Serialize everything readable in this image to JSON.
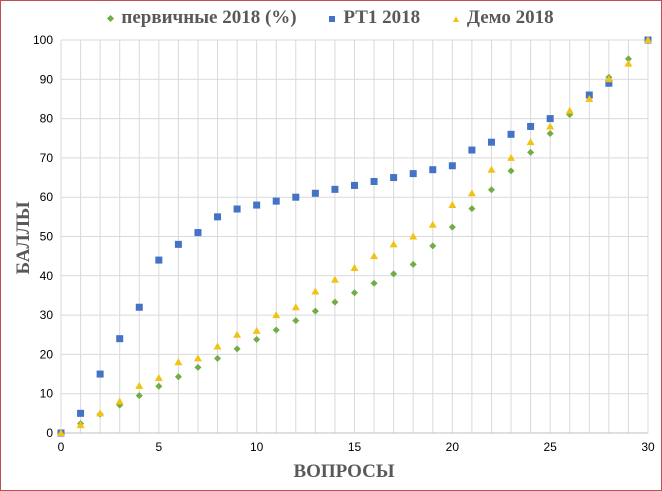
{
  "chart_data": {
    "type": "scatter",
    "xlabel": "ВОПРОСЫ",
    "ylabel": "БАЛЛЫ",
    "xlim": [
      0,
      30
    ],
    "ylim": [
      0,
      100
    ],
    "xticks": [
      0,
      5,
      10,
      15,
      20,
      25,
      30
    ],
    "yticks": [
      0,
      10,
      20,
      30,
      40,
      50,
      60,
      70,
      80,
      90,
      100
    ],
    "grid": true,
    "legend": "top",
    "series": [
      {
        "name": "первичные 2018 (%)",
        "color": "#70ad47",
        "marker": "diamond",
        "x": [
          0,
          1,
          2,
          3,
          4,
          5,
          6,
          7,
          8,
          9,
          10,
          11,
          12,
          13,
          14,
          15,
          16,
          17,
          18,
          19,
          20,
          21,
          22,
          23,
          24,
          25,
          26,
          28,
          29,
          30
        ],
        "y": [
          0,
          2.4,
          4.8,
          7.1,
          9.5,
          11.9,
          14.3,
          16.7,
          19,
          21.4,
          23.8,
          26.2,
          28.6,
          31,
          33.3,
          35.7,
          38.1,
          40.5,
          42.9,
          47.6,
          52.4,
          57.1,
          61.9,
          66.7,
          71.4,
          76.2,
          81,
          90.5,
          95.2,
          100
        ]
      },
      {
        "name": "РТ1 2018",
        "color": "#4472c4",
        "marker": "square",
        "x": [
          0,
          1,
          2,
          3,
          4,
          5,
          6,
          7,
          8,
          9,
          10,
          11,
          12,
          13,
          14,
          15,
          16,
          17,
          18,
          19,
          20,
          21,
          22,
          23,
          24,
          25,
          27,
          28,
          30
        ],
        "y": [
          0,
          5,
          15,
          24,
          32,
          44,
          48,
          51,
          55,
          57,
          58,
          59,
          60,
          61,
          62,
          63,
          64,
          65,
          66,
          67,
          68,
          72,
          74,
          76,
          78,
          80,
          86,
          89,
          100
        ]
      },
      {
        "name": "Демо 2018",
        "color": "#f2c314",
        "marker": "triangle",
        "x": [
          0,
          1,
          2,
          3,
          4,
          5,
          6,
          7,
          8,
          9,
          10,
          11,
          12,
          13,
          14,
          15,
          16,
          17,
          18,
          19,
          20,
          21,
          22,
          23,
          24,
          25,
          26,
          27,
          28,
          29,
          30
        ],
        "y": [
          0,
          2,
          5,
          8,
          12,
          14,
          18,
          19,
          22,
          25,
          26,
          30,
          32,
          36,
          39,
          42,
          45,
          48,
          50,
          53,
          58,
          61,
          67,
          70,
          74,
          78,
          82,
          85,
          90,
          94,
          100
        ]
      }
    ]
  }
}
